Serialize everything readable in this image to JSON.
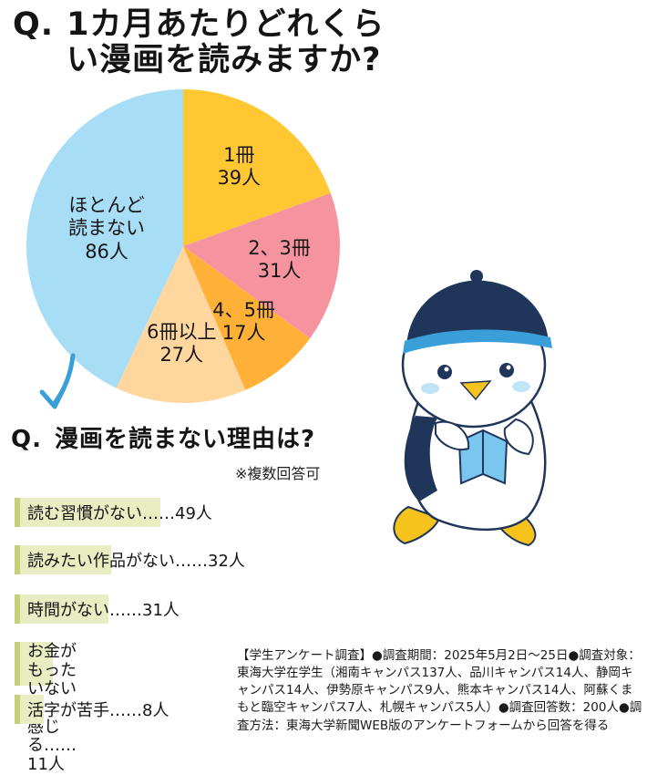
{
  "question1": {
    "mark": "Q.",
    "text": "1カ月あたりどれくらい漫画を読みますか?"
  },
  "chart_data": {
    "type": "pie",
    "slices": [
      {
        "label": "1冊",
        "value": 39,
        "value_text": "39人",
        "color": "#ffc833"
      },
      {
        "label": "2、3冊",
        "value": 31,
        "value_text": "31人",
        "color": "#f5949f"
      },
      {
        "label": "4、5冊",
        "value": 17,
        "value_text": "17人",
        "color": "#ffb037"
      },
      {
        "label": "6冊以上",
        "value": 27,
        "value_text": "27人",
        "color": "#ffd79e"
      },
      {
        "label": "ほとんど\n読まない",
        "value": 86,
        "value_text": "86人",
        "color": "#a8ddf6"
      }
    ]
  },
  "question2": {
    "mark": "Q.",
    "text": "漫画を読まない理由は?",
    "note": "※複数回答可"
  },
  "reasons": [
    {
      "text": "読む習慣がない……49人",
      "value": 49
    },
    {
      "text": "読みたい作品がない……32人",
      "value": 32
    },
    {
      "text": "時間がない……31人",
      "value": 31
    },
    {
      "text": "お金がもったいないと\n感じる……11人",
      "value": 11
    },
    {
      "text": "活字が苦手……8人",
      "value": 8
    }
  ],
  "survey_note": "【学生アンケート調査】●調査期間：2025年5月2日〜25日●調査対象：東海大学在学生（湘南キャンパス137人、品川キャンパス14人、静岡キャンパス14人、伊勢原キャンパス9人、熊本キャンパス14人、阿蘇くまもと臨空キャンパス7人、札幌キャンパス5人）●調査回答数：200人●調査方法：東海大学新聞WEB版のアンケートフォームから回答を得る",
  "colors": {
    "reason_bar": "#e8edc2",
    "reason_bar_edge": "#c5d17a",
    "arrow": "#3a9fd8",
    "mascot_cap": "#1f3559",
    "mascot_beak": "#f6c21c",
    "mascot_book": "#79c6ef"
  }
}
